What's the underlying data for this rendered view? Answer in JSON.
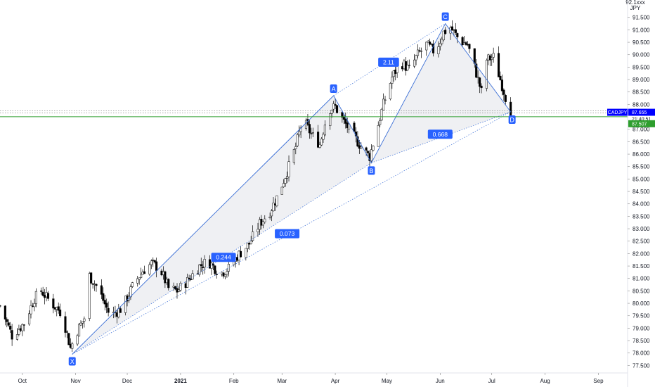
{
  "chart_data": {
    "type": "candlestick",
    "symbol": "CADJPY",
    "currency": "JPY",
    "y_axis_top_label": "92.1xxx",
    "ylim": [
      77.2,
      92.2
    ],
    "y_ticks": [
      77.5,
      78.0,
      78.5,
      79.0,
      79.5,
      80.0,
      80.5,
      81.0,
      81.5,
      82.0,
      82.5,
      83.0,
      83.5,
      84.0,
      84.5,
      85.0,
      85.5,
      86.0,
      86.5,
      87.0,
      87.5,
      88.0,
      88.5,
      89.0,
      89.5,
      90.0,
      90.5,
      91.0,
      91.5
    ],
    "x_ticks": [
      {
        "label": "Oct",
        "date": "2020-10-01"
      },
      {
        "label": "Nov",
        "date": "2020-11-01"
      },
      {
        "label": "Dec",
        "date": "2020-12-01"
      },
      {
        "label": "2021",
        "date": "2021-01-01",
        "bold": true
      },
      {
        "label": "Feb",
        "date": "2021-02-01"
      },
      {
        "label": "Mar",
        "date": "2021-03-01"
      },
      {
        "label": "Apr",
        "date": "2021-04-01"
      },
      {
        "label": "May",
        "date": "2021-05-01"
      },
      {
        "label": "Jun",
        "date": "2021-06-01"
      },
      {
        "label": "Jul",
        "date": "2021-07-01"
      },
      {
        "label": "Aug",
        "date": "2021-08-01"
      },
      {
        "label": "Sep",
        "date": "2021-09-01"
      }
    ],
    "close_path": [
      [
        "2020-09-18",
        79.9
      ],
      [
        "2020-09-25",
        78.7
      ],
      [
        "2020-10-02",
        79.2
      ],
      [
        "2020-10-08",
        80.2
      ],
      [
        "2020-10-12",
        80.5
      ],
      [
        "2020-10-18",
        80.0
      ],
      [
        "2020-10-24",
        79.6
      ],
      [
        "2020-10-29",
        78.2
      ],
      [
        "2020-11-02",
        78.9
      ],
      [
        "2020-11-06",
        79.4
      ],
      [
        "2020-11-09",
        81.1
      ],
      [
        "2020-11-14",
        80.6
      ],
      [
        "2020-11-21",
        79.5
      ],
      [
        "2020-11-28",
        79.8
      ],
      [
        "2020-12-05",
        80.8
      ],
      [
        "2020-12-10",
        81.3
      ],
      [
        "2020-12-15",
        81.6
      ],
      [
        "2020-12-20",
        81.4
      ],
      [
        "2020-12-25",
        80.6
      ],
      [
        "2020-12-30",
        80.5
      ],
      [
        "2021-01-05",
        80.9
      ],
      [
        "2021-01-12",
        81.5
      ],
      [
        "2021-01-17",
        81.7
      ],
      [
        "2021-01-24",
        81.2
      ],
      [
        "2021-01-29",
        81.4
      ],
      [
        "2021-02-03",
        81.9
      ],
      [
        "2021-02-10",
        82.4
      ],
      [
        "2021-02-16",
        83.2
      ],
      [
        "2021-02-22",
        83.7
      ],
      [
        "2021-02-27",
        84.4
      ],
      [
        "2021-03-05",
        85.5
      ],
      [
        "2021-03-09",
        86.3
      ],
      [
        "2021-03-13",
        87.4
      ],
      [
        "2021-03-18",
        86.8
      ],
      [
        "2021-03-23",
        86.4
      ],
      [
        "2021-03-28",
        87.8
      ],
      [
        "2021-04-01",
        87.9
      ],
      [
        "2021-04-06",
        87.3
      ],
      [
        "2021-04-12",
        86.7
      ],
      [
        "2021-04-17",
        86.2
      ],
      [
        "2021-04-21",
        85.9
      ],
      [
        "2021-04-26",
        87.2
      ],
      [
        "2021-04-29",
        88.0
      ],
      [
        "2021-05-04",
        89.1
      ],
      [
        "2021-05-09",
        89.7
      ],
      [
        "2021-05-14",
        89.4
      ],
      [
        "2021-05-19",
        90.0
      ],
      [
        "2021-05-24",
        90.4
      ],
      [
        "2021-05-29",
        90.1
      ],
      [
        "2021-06-03",
        90.9
      ],
      [
        "2021-06-07",
        91.1
      ],
      [
        "2021-06-12",
        90.6
      ],
      [
        "2021-06-17",
        90.4
      ],
      [
        "2021-06-21",
        89.5
      ],
      [
        "2021-06-25",
        88.5
      ],
      [
        "2021-06-28",
        89.8
      ],
      [
        "2021-07-02",
        89.9
      ],
      [
        "2021-07-06",
        89.0
      ],
      [
        "2021-07-09",
        88.3
      ],
      [
        "2021-07-12",
        87.7
      ]
    ],
    "harmonic_pattern": {
      "points": [
        {
          "label": "X",
          "date": "2020-10-30",
          "price": 77.95
        },
        {
          "label": "A",
          "date": "2021-03-31",
          "price": 88.35
        },
        {
          "label": "B",
          "date": "2021-04-22",
          "price": 85.65
        },
        {
          "label": "C",
          "date": "2021-06-04",
          "price": 91.25
        },
        {
          "label": "D",
          "date": "2021-07-12",
          "price": 87.7
        }
      ],
      "ratios": [
        {
          "label": "0.244",
          "date": "2021-01-26",
          "price": 81.85
        },
        {
          "label": "0.073",
          "date": "2021-03-04",
          "price": 82.8
        },
        {
          "label": "2.11",
          "date": "2021-05-02",
          "price": 89.7
        },
        {
          "label": "0.668",
          "date": "2021-06-01",
          "price": 86.8
        }
      ]
    },
    "current_price": {
      "symbol": "CADJPY",
      "price": "87.655",
      "countdown": "21:40:51",
      "value": 87.655
    },
    "horizontal_line": {
      "price": "87.507",
      "value": 87.507
    },
    "dotted_levels": [
      87.655,
      87.74
    ],
    "colors": {
      "candle_up": "#ffffff",
      "candle_down": "#000000",
      "candle_outline": "#000000",
      "pattern_line": "#3b6fd6",
      "pattern_fill": "#d1d4dc",
      "label_bg": "#2962ff",
      "green_line": "#2e9e2e",
      "price_tag": "#0000ff"
    }
  }
}
